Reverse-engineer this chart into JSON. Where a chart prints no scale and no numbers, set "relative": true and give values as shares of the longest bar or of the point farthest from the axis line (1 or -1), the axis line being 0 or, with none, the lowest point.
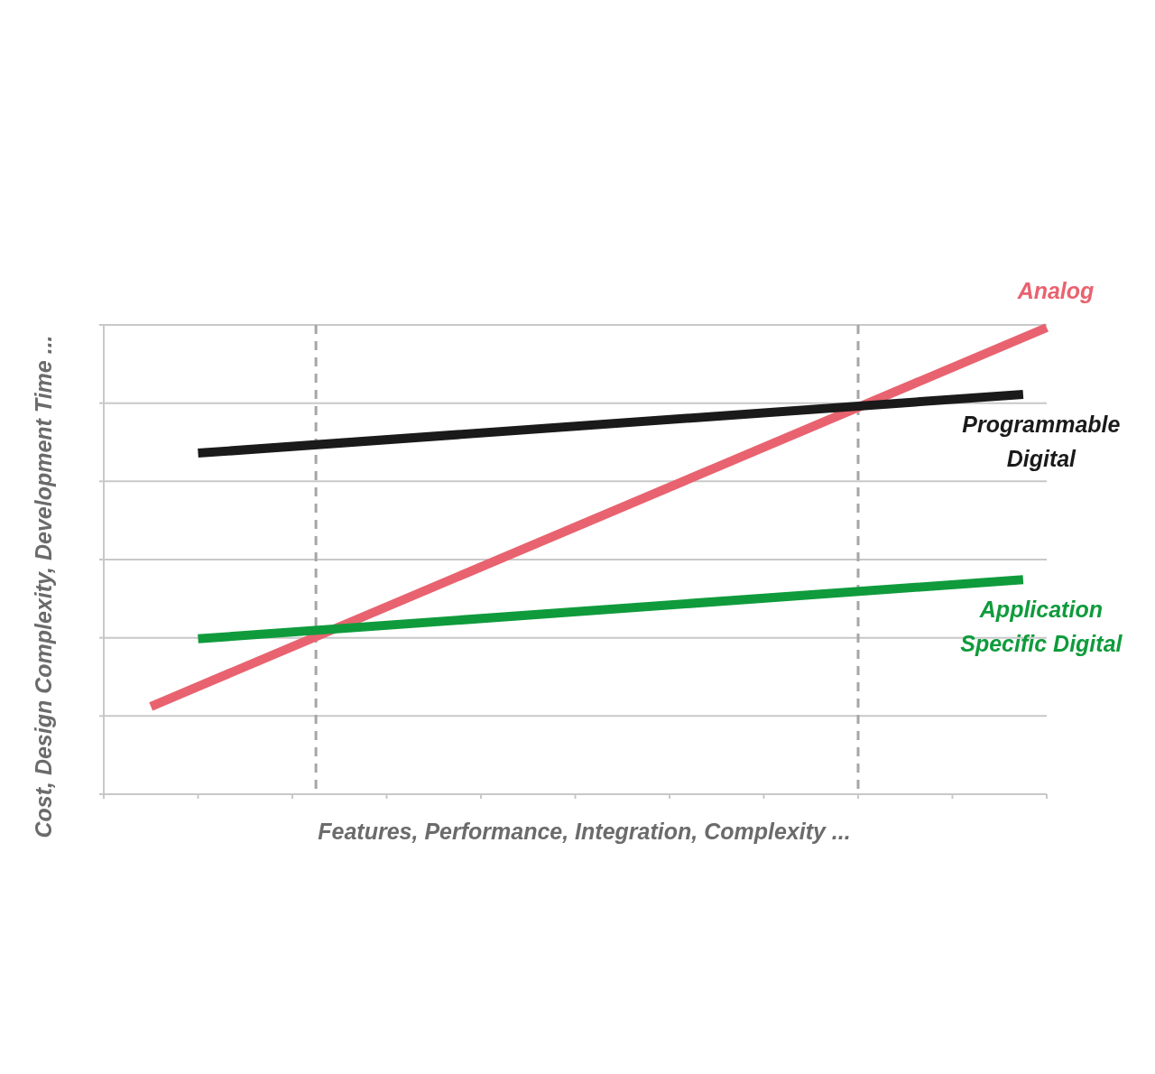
{
  "chart_data": {
    "type": "line",
    "relative": true,
    "xlabel": "Features, Performance, Integration, Complexity ...",
    "ylabel": "Cost, Design Complexity, Development Time ...",
    "categories": [
      null,
      null,
      null,
      null,
      null,
      null,
      null,
      null,
      null,
      null,
      null,
      null,
      null,
      null,
      null,
      null,
      null,
      null,
      null,
      null,
      null,
      null,
      null,
      null,
      null,
      null,
      null,
      null,
      null,
      null,
      null,
      null,
      null,
      null,
      null,
      null,
      null,
      null,
      null,
      null,
      null
    ],
    "grid": "y",
    "marker": "none",
    "line_style": "solid",
    "series": [
      {
        "name": "Analog",
        "color": "#e8636f",
        "values": [
          null,
          null,
          0.188,
          null,
          null,
          null,
          null,
          null,
          null,
          null,
          null,
          null,
          null,
          null,
          null,
          null,
          null,
          null,
          null,
          null,
          null,
          null,
          null,
          null,
          null,
          null,
          null,
          null,
          null,
          null,
          null,
          null,
          null,
          null,
          null,
          null,
          null,
          null,
          null,
          null,
          1
        ]
      },
      {
        "name": "Programmable Digital",
        "color": "#1a1a1a",
        "values": [
          null,
          null,
          null,
          null,
          0.731,
          null,
          null,
          null,
          null,
          null,
          null,
          null,
          null,
          null,
          null,
          null,
          null,
          null,
          null,
          null,
          null,
          null,
          null,
          null,
          null,
          null,
          null,
          null,
          null,
          null,
          null,
          null,
          null,
          null,
          null,
          null,
          null,
          null,
          null,
          0.857,
          null
        ]
      },
      {
        "name": "Application Specific Digital",
        "color": "#0f9b3c",
        "values": [
          null,
          null,
          null,
          null,
          0.333,
          null,
          null,
          null,
          null,
          null,
          null,
          null,
          null,
          null,
          null,
          null,
          null,
          null,
          null,
          null,
          null,
          null,
          null,
          null,
          null,
          null,
          null,
          null,
          null,
          null,
          null,
          null,
          null,
          null,
          null,
          null,
          null,
          null,
          null,
          0.46,
          null
        ]
      }
    ]
  }
}
